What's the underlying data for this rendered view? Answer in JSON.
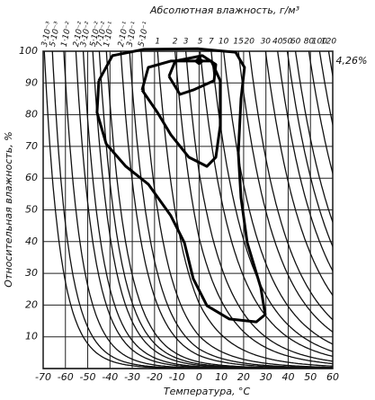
{
  "chart_data": {
    "type": "contour",
    "title": "Абсолютная влажность, г/м³",
    "x_label": "Температура, °С",
    "y_label": "Относительная влажность, %",
    "annotation": "4,26%",
    "xlim": [
      -70,
      60
    ],
    "ylim": [
      0,
      100
    ],
    "xticks": [
      -70,
      -60,
      -50,
      -40,
      -30,
      -20,
      -10,
      0,
      10,
      20,
      30,
      40,
      50,
      60
    ],
    "yticks": [
      10,
      20,
      30,
      40,
      50,
      60,
      70,
      80,
      90,
      100
    ],
    "grid": true,
    "top_ticks": [
      {
        "value": 0.003,
        "label": "3·10⁻³"
      },
      {
        "value": 0.005,
        "label": "5·10⁻³"
      },
      {
        "value": 0.01,
        "label": "1·10⁻²"
      },
      {
        "value": 0.02,
        "label": "2·10⁻²"
      },
      {
        "value": 0.03,
        "label": "3·10⁻²"
      },
      {
        "value": 0.05,
        "label": "5·10⁻²"
      },
      {
        "value": 0.07,
        "label": "7·10⁻²"
      },
      {
        "value": 0.1,
        "label": "1·10⁻¹"
      },
      {
        "value": 0.2,
        "label": "2·10⁻¹"
      },
      {
        "value": 0.3,
        "label": "3·10⁻¹"
      },
      {
        "value": 0.5,
        "label": "5·10⁻¹"
      },
      1,
      2,
      3,
      5,
      7,
      10,
      15,
      20,
      30,
      40,
      50,
      60,
      80,
      100,
      120
    ],
    "contours": [
      {
        "x": [
          -45,
          -38.9,
          -24.8,
          -0.6,
          16.4,
          20.4,
          18.8,
          17.6,
          18.8,
          21.6,
          27.7,
          29.7,
          25.7,
          13.6,
          3.5,
          -2.6,
          -6.6,
          -12.7,
          -22.8,
          -32.9,
          -41.7,
          -45.8,
          -45
        ],
        "y": [
          90.7,
          98.6,
          100.6,
          100.8,
          99.7,
          94.9,
          85,
          68,
          53.8,
          39.7,
          25.5,
          17,
          14.7,
          15.6,
          19.8,
          28.3,
          39.7,
          48.2,
          58.1,
          63.7,
          70.8,
          80.7,
          90.7
        ]
      },
      {
        "x": [
          -25.6,
          -22.8,
          -12.7,
          5.5,
          9.5,
          9.5,
          7.5,
          3.5,
          -4.6,
          -12.7,
          -18.7,
          -25.6
        ],
        "y": [
          87.8,
          94.9,
          96.9,
          96.9,
          90.7,
          76.5,
          66.6,
          63.7,
          66.6,
          73.7,
          80.7,
          87.8
        ]
      },
      {
        "x": [
          -13.5,
          -10.7,
          1.5,
          7.5,
          6.7,
          -2.6,
          -8.6,
          -13.5
        ],
        "y": [
          92.1,
          96.9,
          98.6,
          95.8,
          90.7,
          87.8,
          86.4,
          92.1
        ]
      },
      {
        "x": [
          -1.5,
          0,
          1.5,
          0,
          -1.5
        ],
        "y": [
          96.9,
          97.7,
          96.9,
          96.1,
          96.9
        ]
      }
    ]
  }
}
